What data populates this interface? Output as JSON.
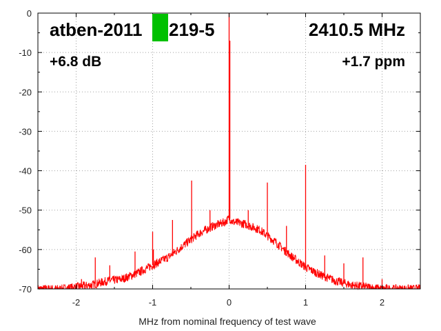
{
  "chart_data": {
    "type": "line",
    "title": "",
    "xlabel": "MHz from nominal frequency of test wave",
    "ylabel": "",
    "xlim": [
      -2.5,
      2.5
    ],
    "ylim": [
      -70,
      0
    ],
    "grid": true,
    "x_ticks": [
      -2,
      -1,
      0,
      1,
      2
    ],
    "x_tick_labels": [
      "-2",
      "-1",
      "0",
      "1",
      "2"
    ],
    "y_ticks": [
      0,
      -10,
      -20,
      -30,
      -40,
      -50,
      -60,
      -70
    ],
    "y_tick_labels": [
      "0",
      "-10",
      "-20",
      "-30",
      "-40",
      "-50",
      "-60",
      "-70"
    ],
    "series": [
      {
        "color": "#ff0000",
        "baseline": {
          "x": [
            -2.5,
            -2.2,
            -2.0,
            -1.8,
            -1.6,
            -1.4,
            -1.2,
            -1.0,
            -0.8,
            -0.6,
            -0.4,
            -0.2,
            -0.05,
            0.0,
            0.05,
            0.2,
            0.4,
            0.6,
            0.8,
            1.0,
            1.2,
            1.4,
            1.6,
            1.8,
            2.0,
            2.2,
            2.5
          ],
          "y": [
            -70,
            -70,
            -69.5,
            -69,
            -68,
            -67.5,
            -66,
            -64,
            -62,
            -59,
            -56,
            -54,
            -53,
            -52,
            -53,
            -53.5,
            -55,
            -58,
            -61.5,
            -64.5,
            -66.5,
            -68,
            -69,
            -69.5,
            -70,
            -70,
            -70
          ]
        },
        "spurs": [
          {
            "x": 0.0,
            "y": 0
          },
          {
            "x": 0.01,
            "y": -7
          },
          {
            "x": -1.93,
            "y": -67.5
          },
          {
            "x": -1.75,
            "y": -62
          },
          {
            "x": -1.56,
            "y": -64
          },
          {
            "x": -1.23,
            "y": -60.5
          },
          {
            "x": -1.0,
            "y": -55.5
          },
          {
            "x": -0.99,
            "y": -60
          },
          {
            "x": -0.74,
            "y": -52.5
          },
          {
            "x": -0.49,
            "y": -42.5
          },
          {
            "x": -0.25,
            "y": -50
          },
          {
            "x": 0.25,
            "y": -50
          },
          {
            "x": 0.5,
            "y": -43
          },
          {
            "x": 0.75,
            "y": -54
          },
          {
            "x": 1.0,
            "y": -38.5
          },
          {
            "x": 1.25,
            "y": -61.5
          },
          {
            "x": 1.5,
            "y": -63.5
          },
          {
            "x": 1.75,
            "y": -62
          },
          {
            "x": 2.0,
            "y": -67.5
          }
        ]
      }
    ],
    "annotations": {
      "device": "atben-2011",
      "device_suffix": "219-5",
      "frequency": "2410.5 MHz",
      "level": "+6.8 dB",
      "offset_ppm": "+1.7 ppm",
      "marker_color": "#00c000"
    }
  }
}
